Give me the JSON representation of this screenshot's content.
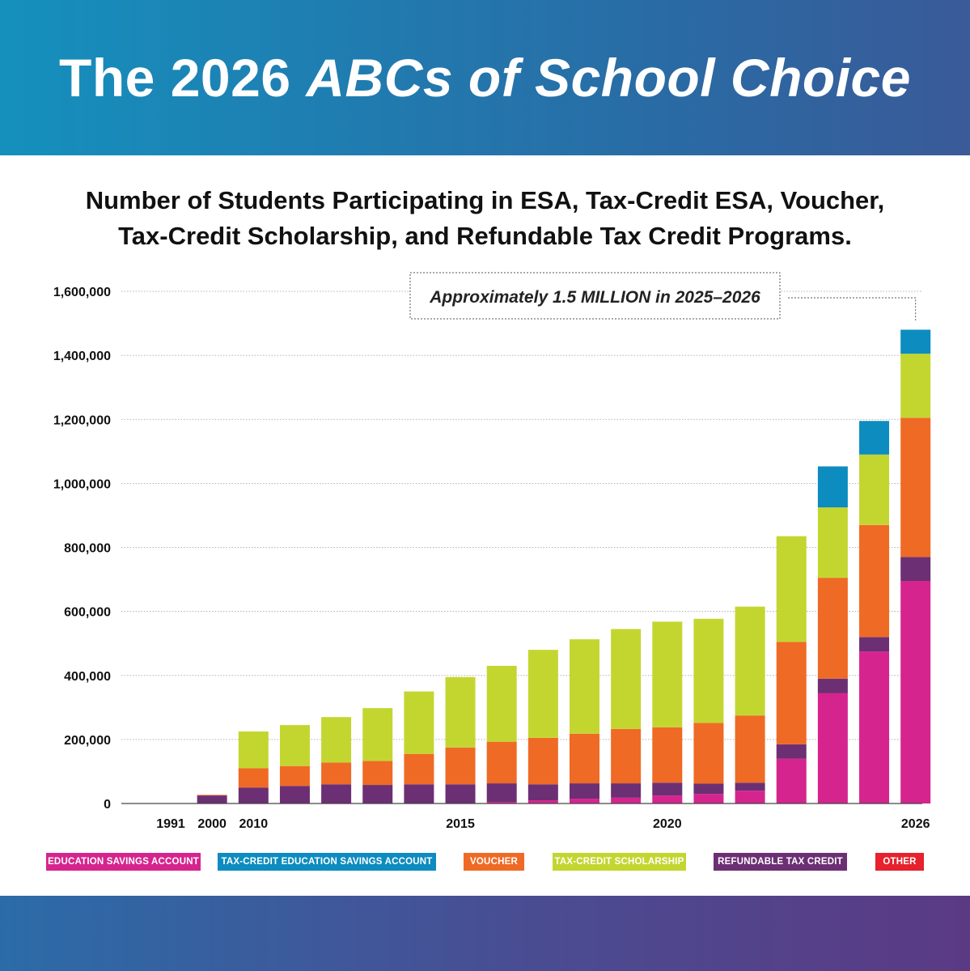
{
  "header": {
    "title_plain": "The 2026",
    "title_italic": "ABCs of School Choice"
  },
  "subtitle": {
    "line1": "Number of Students Participating in ESA, Tax-Credit ESA, Voucher,",
    "line2": "Tax-Credit Scholarship, and Refundable Tax Credit Programs."
  },
  "colors": {
    "esa": "#d6248f",
    "tc_esa": "#0d8cc0",
    "voucher": "#ef6a25",
    "tcs": "#c3d630",
    "rtc": "#6c2f74",
    "other": "#e5222d",
    "banner_start": "#1590bd",
    "banner_end": "#3a5a98"
  },
  "chart_data": {
    "type": "bar",
    "stacked": true,
    "ylim": [
      0,
      1600000
    ],
    "yticks": [
      0,
      200000,
      400000,
      600000,
      800000,
      1000000,
      1200000,
      1400000,
      1600000
    ],
    "ytick_labels": [
      "0",
      "200,000",
      "400,000",
      "600,000",
      "800,000",
      "1,000,000",
      "1,200,000",
      "1,400,000",
      "1,600,000"
    ],
    "xtick_labels": [
      {
        "index": 0,
        "label": "1991"
      },
      {
        "index": 1,
        "label": "2000"
      },
      {
        "index": 2,
        "label": "2010"
      },
      {
        "index": 7,
        "label": "2015"
      },
      {
        "index": 12,
        "label": "2020"
      },
      {
        "index": 18,
        "label": "2026"
      }
    ],
    "categories": [
      "1991",
      "2000",
      "2010",
      "2011",
      "2012",
      "2013",
      "2014",
      "2015",
      "2016",
      "2017",
      "2018",
      "2019",
      "2020",
      "2021",
      "2022",
      "2023",
      "2024",
      "2025",
      "2026"
    ],
    "series": [
      {
        "name": "Education Savings Account",
        "key": "esa",
        "values": [
          0,
          0,
          0,
          0,
          0,
          0,
          0,
          0,
          5000,
          10000,
          15000,
          18000,
          25000,
          30000,
          40000,
          140000,
          345000,
          475000,
          695000
        ]
      },
      {
        "name": "Refundable Tax Credit",
        "key": "rtc",
        "values": [
          0,
          25000,
          50000,
          55000,
          60000,
          58000,
          60000,
          60000,
          58000,
          50000,
          48000,
          45000,
          40000,
          32000,
          25000,
          45000,
          45000,
          45000,
          75000
        ]
      },
      {
        "name": "Voucher",
        "key": "voucher",
        "values": [
          1000,
          2000,
          60000,
          62000,
          68000,
          75000,
          95000,
          115000,
          130000,
          145000,
          155000,
          170000,
          173000,
          190000,
          210000,
          320000,
          315000,
          350000,
          435000
        ]
      },
      {
        "name": "Tax-Credit Scholarship",
        "key": "tcs",
        "values": [
          0,
          0,
          115000,
          128000,
          142000,
          165000,
          195000,
          220000,
          237000,
          275000,
          295000,
          312000,
          330000,
          325000,
          340000,
          330000,
          220000,
          220000,
          200000
        ]
      },
      {
        "name": "Tax-Credit Education Savings Account",
        "key": "tc_esa",
        "values": [
          0,
          0,
          0,
          0,
          0,
          0,
          0,
          0,
          0,
          0,
          0,
          0,
          0,
          0,
          0,
          0,
          128000,
          105000,
          75000
        ]
      },
      {
        "name": "Other",
        "key": "other",
        "values": [
          0,
          0,
          0,
          0,
          0,
          0,
          0,
          0,
          0,
          0,
          0,
          0,
          0,
          0,
          0,
          0,
          0,
          0,
          0
        ]
      }
    ],
    "annotation": {
      "text": "Approximately 1.5 MILLION in 2025–2026",
      "target_index": 18
    }
  },
  "legend": {
    "esa": "EDUCATION SAVINGS ACCOUNT",
    "tc_esa": "TAX-CREDIT EDUCATION SAVINGS ACCOUNT",
    "voucher": "VOUCHER",
    "tcs": "TAX-CREDIT SCHOLARSHIP",
    "rtc": "REFUNDABLE TAX CREDIT",
    "other": "OTHER"
  }
}
